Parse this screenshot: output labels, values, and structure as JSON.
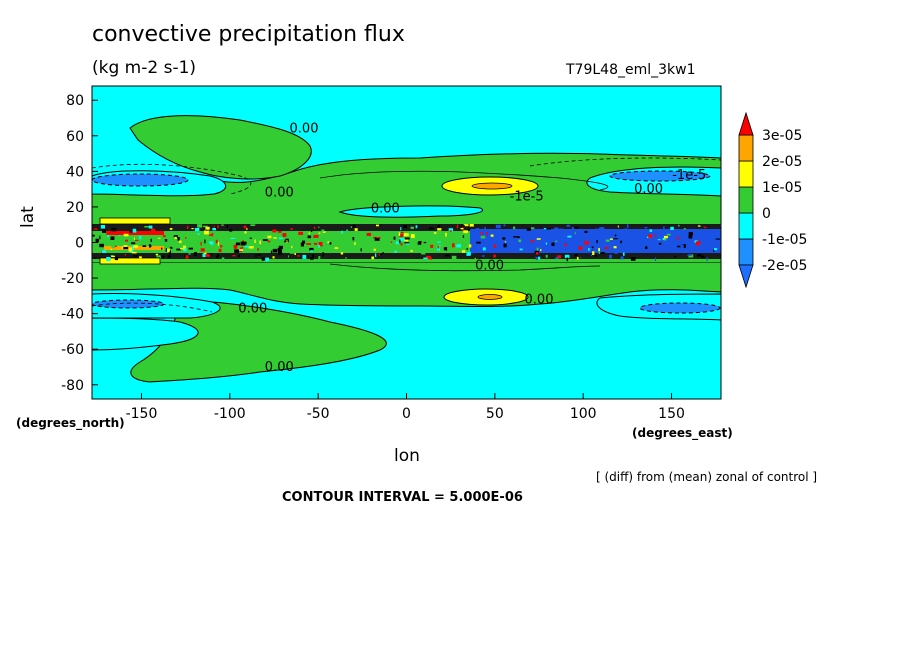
{
  "header": {
    "title": "convective precipitation flux",
    "units": "(kg m-2 s-1)",
    "run": "T79L48_eml_3kw1"
  },
  "footer": {
    "note": "[ (diff) from (mean) zonal of control ]",
    "interval": "CONTOUR INTERVAL = 5.000E-06"
  },
  "colors": {
    "level_m2": "#1e90ff",
    "level_m1": "#00ffff",
    "level_0": "#33cc33",
    "level_1": "#ffff00",
    "level_2": "#ffa500",
    "level_3": "#ff0000",
    "band_dark": "#1a52e6"
  },
  "chart_data": {
    "type": "heatmap",
    "title": "convective precipitation flux",
    "subtitle": "(kg m-2 s-1)",
    "run_label": "T79L48_eml_3kw1",
    "xlabel": "lon",
    "ylabel": "lat",
    "x_unit_label": "(degrees_east)",
    "y_unit_label": "(degrees_north)",
    "xlim": [
      -178,
      178
    ],
    "ylim": [
      -88,
      88
    ],
    "x_ticks": [
      -150,
      -100,
      -50,
      0,
      50,
      100,
      150
    ],
    "x_tick_labels": [
      "-150",
      "-100",
      "-50",
      "0",
      "50",
      "100",
      "150"
    ],
    "y_ticks": [
      -80,
      -60,
      -40,
      -20,
      0,
      20,
      40,
      60,
      80
    ],
    "y_tick_labels": [
      "-80",
      "-60",
      "-40",
      "-20",
      "0",
      "20",
      "40",
      "60",
      "80"
    ],
    "colorbar": {
      "levels": [
        -2e-05,
        -1e-05,
        0,
        1e-05,
        2e-05,
        3e-05
      ],
      "labels": [
        "-2e-05",
        "-1e-05",
        "0",
        "1e-05",
        "2e-05",
        "3e-05"
      ]
    },
    "contour_labels": [
      {
        "text": "0.00",
        "lon": -58,
        "lat": 64
      },
      {
        "text": "0.00",
        "lon": -72,
        "lat": 28
      },
      {
        "text": "0.00",
        "lon": -12,
        "lat": 19
      },
      {
        "text": "-1e-5",
        "lon": 68,
        "lat": 26
      },
      {
        "text": "-1e-5",
        "lon": 160,
        "lat": 38
      },
      {
        "text": "0.00",
        "lon": 137,
        "lat": 30
      },
      {
        "text": "0.00",
        "lon": 47,
        "lat": -13
      },
      {
        "text": "0.00",
        "lon": 75,
        "lat": -32
      },
      {
        "text": "0.00",
        "lon": -87,
        "lat": -37
      },
      {
        "text": "0.00",
        "lon": -72,
        "lat": -70
      }
    ],
    "contour_interval": 5e-06,
    "grid": false
  }
}
